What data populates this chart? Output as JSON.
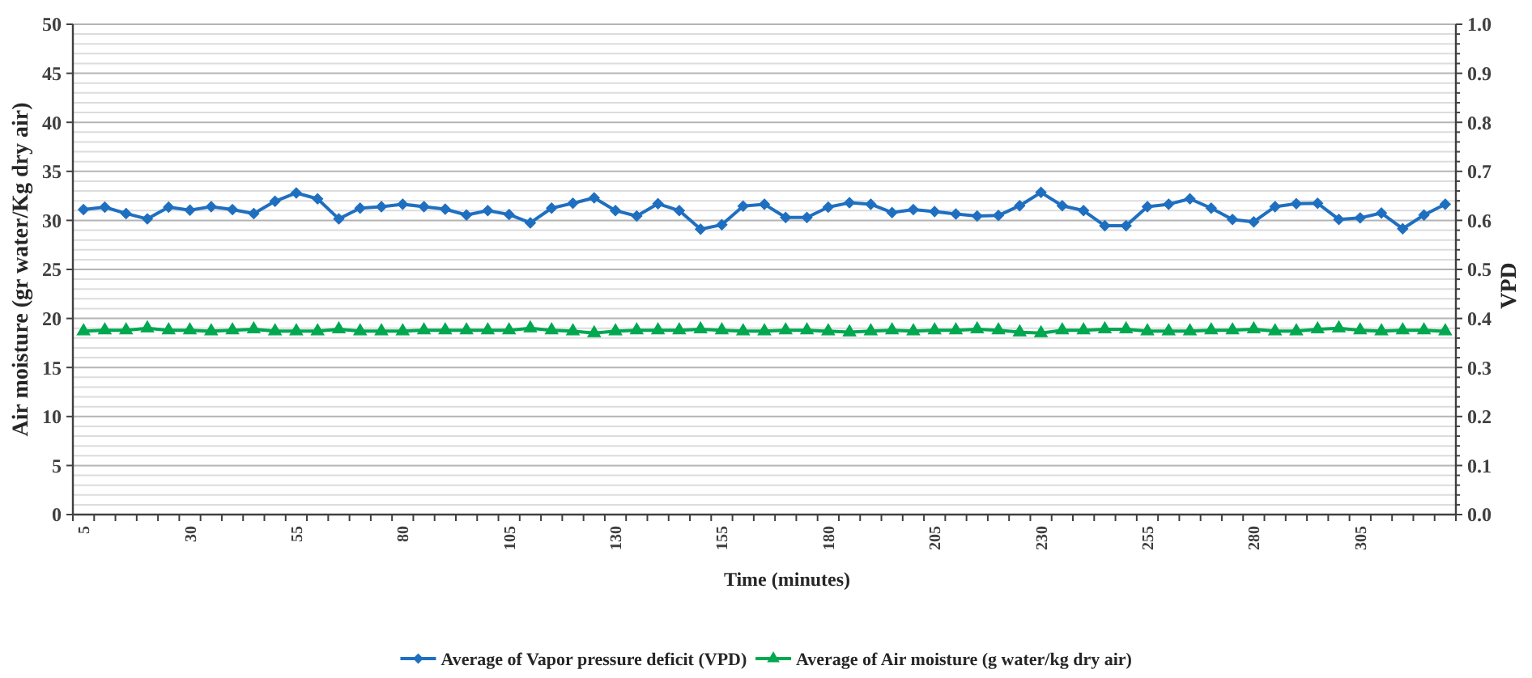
{
  "chart_data": {
    "type": "line",
    "xlabel": "Time (minutes)",
    "ylabel": "Air moisture (gr water/Kg dry air)",
    "y2label": "VPD",
    "categories": [
      "5",
      null,
      null,
      null,
      null,
      "30",
      null,
      null,
      null,
      null,
      "55",
      null,
      null,
      null,
      null,
      "80",
      null,
      null,
      null,
      null,
      "105",
      null,
      null,
      null,
      null,
      "130",
      null,
      null,
      null,
      null,
      "155",
      null,
      null,
      null,
      null,
      "180",
      null,
      null,
      null,
      null,
      "205",
      null,
      null,
      null,
      null,
      "230",
      null,
      null,
      null,
      null,
      "255",
      null,
      null,
      null,
      null,
      "280",
      null,
      null,
      null,
      null,
      "305",
      null,
      null,
      null,
      null
    ],
    "series": [
      {
        "name": "Average of Vapor pressure deficit (VPD)",
        "color": "#1f6fc1",
        "axis": "y2",
        "marker": "diamond",
        "values": [
          0.622,
          0.627,
          0.614,
          0.603,
          0.627,
          0.621,
          0.628,
          0.622,
          0.614,
          0.639,
          0.656,
          0.644,
          0.603,
          0.625,
          0.628,
          0.633,
          0.628,
          0.623,
          0.611,
          0.62,
          0.612,
          0.595,
          0.625,
          0.635,
          0.646,
          0.62,
          0.609,
          0.634,
          0.62,
          0.582,
          0.591,
          0.629,
          0.633,
          0.606,
          0.606,
          0.627,
          0.636,
          0.633,
          0.616,
          0.622,
          0.618,
          0.613,
          0.609,
          0.61,
          0.63,
          0.657,
          0.63,
          0.62,
          0.589,
          0.589,
          0.628,
          0.633,
          0.644,
          0.625,
          0.602,
          0.597,
          0.628,
          0.634,
          0.635,
          0.602,
          0.605,
          0.615,
          0.583,
          0.611,
          0.633
        ]
      },
      {
        "name": "Average of Air moisture (g water/kg dry air)",
        "color": "#00a84f",
        "marker": "triangle",
        "values": [
          18.7,
          18.8,
          18.8,
          19.0,
          18.8,
          18.8,
          18.7,
          18.8,
          18.9,
          18.7,
          18.7,
          18.7,
          18.9,
          18.7,
          18.7,
          18.7,
          18.8,
          18.8,
          18.8,
          18.8,
          18.8,
          19.0,
          18.8,
          18.7,
          18.5,
          18.7,
          18.8,
          18.8,
          18.8,
          18.9,
          18.8,
          18.7,
          18.7,
          18.8,
          18.8,
          18.7,
          18.6,
          18.7,
          18.8,
          18.7,
          18.8,
          18.8,
          18.9,
          18.8,
          18.6,
          18.5,
          18.8,
          18.8,
          18.9,
          18.9,
          18.7,
          18.7,
          18.7,
          18.8,
          18.8,
          18.9,
          18.7,
          18.7,
          18.9,
          19.0,
          18.8,
          18.7,
          18.8,
          18.8,
          18.7
        ]
      }
    ],
    "ylim": [
      0,
      50
    ],
    "yticks": [
      0,
      {
        "value": 1,
        "label": null
      },
      {
        "value": 2,
        "label": null
      },
      {
        "value": 3,
        "label": null
      },
      {
        "value": 4,
        "label": null
      },
      5,
      {
        "value": 6,
        "label": null
      },
      {
        "value": 7,
        "label": null
      },
      {
        "value": 8,
        "label": null
      },
      {
        "value": 9,
        "label": null
      },
      10,
      {
        "value": 11,
        "label": null
      },
      {
        "value": 12,
        "label": null
      },
      {
        "value": 13,
        "label": null
      },
      {
        "value": 14,
        "label": null
      },
      15,
      {
        "value": 16,
        "label": null
      },
      {
        "value": 17,
        "label": null
      },
      {
        "value": 18,
        "label": null
      },
      {
        "value": 19,
        "label": null
      },
      20,
      {
        "value": 21,
        "label": null
      },
      {
        "value": 22,
        "label": null
      },
      {
        "value": 23,
        "label": null
      },
      {
        "value": 24,
        "label": null
      },
      25,
      {
        "value": 26,
        "label": null
      },
      {
        "value": 27,
        "label": null
      },
      {
        "value": 28,
        "label": null
      },
      {
        "value": 29,
        "label": null
      },
      30,
      {
        "value": 31,
        "label": null
      },
      {
        "value": 32,
        "label": null
      },
      {
        "value": 33,
        "label": null
      },
      {
        "value": 34,
        "label": null
      },
      35,
      {
        "value": 36,
        "label": null
      },
      {
        "value": 37,
        "label": null
      },
      {
        "value": 38,
        "label": null
      },
      {
        "value": 39,
        "label": null
      },
      40,
      {
        "value": 41,
        "label": null
      },
      {
        "value": 42,
        "label": null
      },
      {
        "value": 43,
        "label": null
      },
      {
        "value": 44,
        "label": null
      },
      45,
      {
        "value": 46,
        "label": null
      },
      {
        "value": 47,
        "label": null
      },
      {
        "value": 48,
        "label": null
      },
      {
        "value": 49,
        "label": null
      },
      50
    ],
    "y2lim": [
      0,
      1
    ],
    "y2ticks": [
      {
        "value": 0,
        "label": "0.0"
      },
      {
        "value": 0.02,
        "label": null
      },
      {
        "value": 0.04,
        "label": null
      },
      {
        "value": 0.06,
        "label": null
      },
      {
        "value": 0.08,
        "label": null
      },
      {
        "value": 0.1,
        "label": "0.1"
      },
      {
        "value": 0.12,
        "label": null
      },
      {
        "value": 0.14,
        "label": null
      },
      {
        "value": 0.16,
        "label": null
      },
      {
        "value": 0.18,
        "label": null
      },
      {
        "value": 0.2,
        "label": "0.2"
      },
      {
        "value": 0.22,
        "label": null
      },
      {
        "value": 0.24,
        "label": null
      },
      {
        "value": 0.26,
        "label": null
      },
      {
        "value": 0.28,
        "label": null
      },
      {
        "value": 0.3,
        "label": "0.3"
      },
      {
        "value": 0.32,
        "label": null
      },
      {
        "value": 0.34,
        "label": null
      },
      {
        "value": 0.36,
        "label": null
      },
      {
        "value": 0.38,
        "label": null
      },
      {
        "value": 0.4,
        "label": "0.4"
      },
      {
        "value": 0.42,
        "label": null
      },
      {
        "value": 0.44,
        "label": null
      },
      {
        "value": 0.46,
        "label": null
      },
      {
        "value": 0.48,
        "label": null
      },
      {
        "value": 0.5,
        "label": "0.5"
      },
      {
        "value": 0.52,
        "label": null
      },
      {
        "value": 0.54,
        "label": null
      },
      {
        "value": 0.56,
        "label": null
      },
      {
        "value": 0.58,
        "label": null
      },
      {
        "value": 0.6,
        "label": "0.6"
      },
      {
        "value": 0.62,
        "label": null
      },
      {
        "value": 0.64,
        "label": null
      },
      {
        "value": 0.66,
        "label": null
      },
      {
        "value": 0.68,
        "label": null
      },
      {
        "value": 0.7,
        "label": "0.7"
      },
      {
        "value": 0.72,
        "label": null
      },
      {
        "value": 0.74,
        "label": null
      },
      {
        "value": 0.76,
        "label": null
      },
      {
        "value": 0.78,
        "label": null
      },
      {
        "value": 0.8,
        "label": "0.8"
      },
      {
        "value": 0.82,
        "label": null
      },
      {
        "value": 0.84,
        "label": null
      },
      {
        "value": 0.86,
        "label": null
      },
      {
        "value": 0.88,
        "label": null
      },
      {
        "value": 0.9,
        "label": "0.9"
      },
      {
        "value": 0.92,
        "label": null
      },
      {
        "value": 0.94,
        "label": null
      },
      {
        "value": 0.96,
        "label": null
      },
      {
        "value": 0.98,
        "label": null
      },
      {
        "value": 1,
        "label": "1.0"
      }
    ],
    "grid": "y",
    "legend": "bottom"
  }
}
